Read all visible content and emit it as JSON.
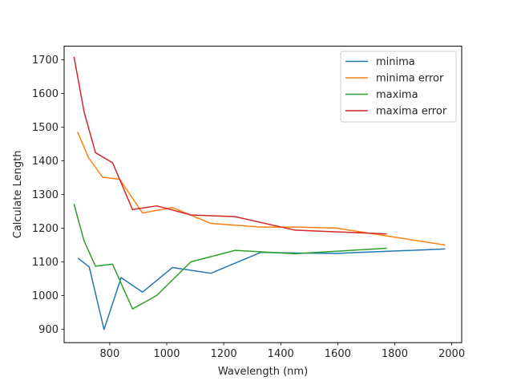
{
  "chart_data": {
    "type": "line",
    "xlabel": "Wavelength (nm)",
    "ylabel": "Calculate Length",
    "xlim": [
      640,
      2035
    ],
    "ylim": [
      860,
      1740
    ],
    "xticks": [
      800,
      1000,
      1200,
      1400,
      1600,
      1800,
      2000
    ],
    "yticks": [
      900,
      1000,
      1100,
      1200,
      1300,
      1400,
      1500,
      1600,
      1700
    ],
    "grid": false,
    "legend": "upper-right",
    "series": [
      {
        "name": "minima",
        "color": "#1f77b4",
        "x": [
          690,
          728,
          780,
          840,
          915,
          1020,
          1155,
          1330,
          1460,
          1595,
          1975
        ],
        "y": [
          1110,
          1085,
          899,
          1053,
          1010,
          1083,
          1066,
          1128,
          1126,
          1125,
          1138
        ]
      },
      {
        "name": "minima error",
        "color": "#ff7f0e",
        "x": [
          688,
          725,
          775,
          835,
          915,
          1020,
          1155,
          1330,
          1460,
          1595,
          1975
        ],
        "y": [
          1484,
          1410,
          1351,
          1345,
          1245,
          1261,
          1214,
          1203,
          1203,
          1200,
          1150
        ]
      },
      {
        "name": "maxima",
        "color": "#2ca02c",
        "x": [
          675,
          710,
          750,
          810,
          880,
          965,
          1085,
          1240,
          1450,
          1770
        ],
        "y": [
          1270,
          1162,
          1087,
          1093,
          960,
          1000,
          1100,
          1134,
          1124,
          1140
        ]
      },
      {
        "name": "maxima error",
        "color": "#d62728",
        "x": [
          675,
          710,
          750,
          810,
          880,
          965,
          1085,
          1240,
          1450,
          1770
        ],
        "y": [
          1707,
          1545,
          1424,
          1394,
          1255,
          1266,
          1239,
          1234,
          1194,
          1183
        ]
      }
    ]
  }
}
